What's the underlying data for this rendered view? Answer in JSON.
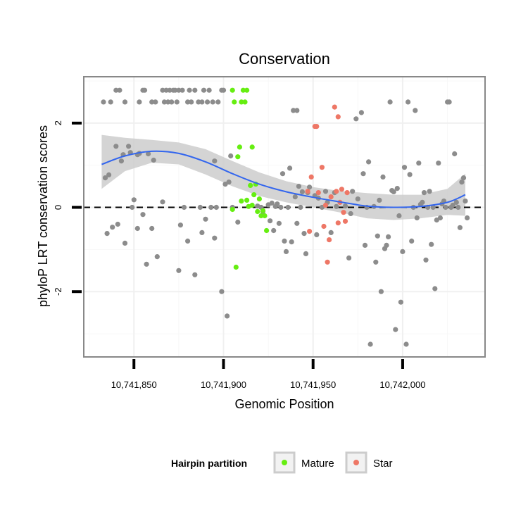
{
  "chart_data": {
    "type": "scatter",
    "title": "Conservation",
    "xlabel": "Genomic Position",
    "ylabel": "phyloP LRT conservation scores",
    "xlim": [
      10741822,
      10742046
    ],
    "ylim": [
      -3.55,
      3.1
    ],
    "x_ticks": [
      {
        "value": 10741850,
        "label": "10,741,850"
      },
      {
        "value": 10741900,
        "label": "10,741,900"
      },
      {
        "value": 10741950,
        "label": "10,741,950"
      },
      {
        "value": 10742000,
        "label": "10,742,000"
      }
    ],
    "y_ticks": [
      {
        "value": -2,
        "label": "-2"
      },
      {
        "value": 0,
        "label": "0"
      },
      {
        "value": 2,
        "label": "2"
      }
    ],
    "reference_line": {
      "y": 0,
      "style": "dashed"
    },
    "legend": {
      "title": "Hairpin partition",
      "entries": [
        {
          "label": "Mature",
          "color": "#66ee11"
        },
        {
          "label": "Star",
          "color": "#ee7766"
        }
      ]
    },
    "colors": {
      "other": "#8c8c8c",
      "mature": "#66ee11",
      "star": "#ee7766",
      "smooth": "#3366ee",
      "band": "#cccccc"
    },
    "smooth": {
      "x": [
        10741832,
        10741845,
        10741860,
        10741875,
        10741890,
        10741905,
        10741920,
        10741935,
        10741950,
        10741965,
        10741980,
        10741995,
        10742010,
        10742025,
        10742035
      ],
      "y": [
        1.02,
        1.22,
        1.33,
        1.28,
        1.08,
        0.8,
        0.55,
        0.37,
        0.24,
        0.13,
        0.03,
        0.0,
        0.02,
        0.12,
        0.3
      ]
    },
    "band": {
      "upper": [
        1.72,
        1.65,
        1.6,
        1.54,
        1.38,
        1.1,
        0.83,
        0.62,
        0.48,
        0.39,
        0.34,
        0.3,
        0.3,
        0.44,
        0.8
      ],
      "lower": [
        0.44,
        0.86,
        1.06,
        1.02,
        0.78,
        0.5,
        0.27,
        0.12,
        0.0,
        -0.12,
        -0.26,
        -0.3,
        -0.26,
        -0.18,
        -0.2
      ]
    },
    "series": [
      {
        "name": "other",
        "points": [
          [
            10741833,
            2.5
          ],
          [
            10741834,
            0.7
          ],
          [
            10741835,
            -0.62
          ],
          [
            10741836,
            0.77
          ],
          [
            10741837,
            2.5
          ],
          [
            10741838,
            -0.47
          ],
          [
            10741840,
            1.45
          ],
          [
            10741840,
            2.78
          ],
          [
            10741841,
            -0.4
          ],
          [
            10741843,
            1.1
          ],
          [
            10741842,
            2.78
          ],
          [
            10741844,
            1.25
          ],
          [
            10741845,
            2.5
          ],
          [
            10741845,
            -0.85
          ],
          [
            10741847,
            1.45
          ],
          [
            10741848,
            1.3
          ],
          [
            10741849,
            0.0
          ],
          [
            10741850,
            0.18
          ],
          [
            10741852,
            1.25
          ],
          [
            10741852,
            -0.5
          ],
          [
            10741853,
            1.28
          ],
          [
            10741853,
            2.5
          ],
          [
            10741855,
            -0.17
          ],
          [
            10741855,
            2.78
          ],
          [
            10741856,
            2.78
          ],
          [
            10741857,
            -1.35
          ],
          [
            10741858,
            1.27
          ],
          [
            10741860,
            -0.5
          ],
          [
            10741860,
            2.5
          ],
          [
            10741861,
            1.12
          ],
          [
            10741862,
            2.5
          ],
          [
            10741863,
            -1.17
          ],
          [
            10741866,
            0.13
          ],
          [
            10741866,
            2.78
          ],
          [
            10741867,
            2.5
          ],
          [
            10741868,
            2.78
          ],
          [
            10741869,
            2.5
          ],
          [
            10741870,
            2.78
          ],
          [
            10741871,
            2.5
          ],
          [
            10741872,
            2.78
          ],
          [
            10741873,
            2.78
          ],
          [
            10741874,
            2.5
          ],
          [
            10741875,
            -1.5
          ],
          [
            10741875,
            2.78
          ],
          [
            10741876,
            -0.42
          ],
          [
            10741877,
            2.78
          ],
          [
            10741878,
            0.0
          ],
          [
            10741880,
            -0.8
          ],
          [
            10741880,
            2.5
          ],
          [
            10741881,
            2.78
          ],
          [
            10741882,
            2.5
          ],
          [
            10741884,
            -1.6
          ],
          [
            10741884,
            2.78
          ],
          [
            10741886,
            2.5
          ],
          [
            10741887,
            0.0
          ],
          [
            10741888,
            -0.6
          ],
          [
            10741888,
            2.5
          ],
          [
            10741889,
            2.78
          ],
          [
            10741890,
            -0.28
          ],
          [
            10741891,
            2.5
          ],
          [
            10741892,
            2.78
          ],
          [
            10741893,
            0.0
          ],
          [
            10741894,
            2.5
          ],
          [
            10741895,
            1.1
          ],
          [
            10741895,
            -0.73
          ],
          [
            10741896,
            0.0
          ],
          [
            10741897,
            2.5
          ],
          [
            10741899,
            2.78
          ],
          [
            10741899,
            -2.0
          ],
          [
            10741900,
            2.78
          ],
          [
            10741901,
            0.55
          ],
          [
            10741902,
            -2.58
          ],
          [
            10741903,
            0.6
          ],
          [
            10741904,
            1.22
          ],
          [
            10741905,
            0.0
          ],
          [
            10741908,
            -0.35
          ],
          [
            10741919,
            0.03
          ],
          [
            10741921,
            0.0
          ],
          [
            10741922,
            -0.1
          ],
          [
            10741925,
            0.06
          ],
          [
            10741926,
            -0.32
          ],
          [
            10741927,
            0.1
          ],
          [
            10741928,
            -0.55
          ],
          [
            10741929,
            0.02
          ],
          [
            10741930,
            0.08
          ],
          [
            10741931,
            -0.38
          ],
          [
            10741932,
            0.0
          ],
          [
            10741933,
            0.8
          ],
          [
            10741934,
            -0.8
          ],
          [
            10741935,
            -1.05
          ],
          [
            10741936,
            0.0
          ],
          [
            10741937,
            0.93
          ],
          [
            10741938,
            -0.82
          ],
          [
            10741939,
            2.3
          ],
          [
            10741940,
            0.25
          ],
          [
            10741941,
            2.3
          ],
          [
            10741941,
            -0.38
          ],
          [
            10741942,
            0.5
          ],
          [
            10741943,
            0.0
          ],
          [
            10741944,
            0.37
          ],
          [
            10741945,
            -0.62
          ],
          [
            10741946,
            -1.1
          ],
          [
            10741947,
            0.35
          ],
          [
            10741948,
            0.48
          ],
          [
            10741951,
            0.28
          ],
          [
            10741952,
            -0.65
          ],
          [
            10741953,
            0.22
          ],
          [
            10741955,
            0.0
          ],
          [
            10741957,
            0.38
          ],
          [
            10741958,
            0.12
          ],
          [
            10741960,
            -0.6
          ],
          [
            10741962,
            0.35
          ],
          [
            10741963,
            0.02
          ],
          [
            10741968,
            0.03
          ],
          [
            10741970,
            -1.2
          ],
          [
            10741971,
            -0.15
          ],
          [
            10741972,
            0.38
          ],
          [
            10741974,
            2.1
          ],
          [
            10741975,
            0.2
          ],
          [
            10741977,
            2.25
          ],
          [
            10741978,
            0.8
          ],
          [
            10741979,
            -0.9
          ],
          [
            10741980,
            0.0
          ],
          [
            10741981,
            1.08
          ],
          [
            10741982,
            -3.25
          ],
          [
            10741984,
            0.02
          ],
          [
            10741985,
            -1.3
          ],
          [
            10741986,
            -0.68
          ],
          [
            10741987,
            0.17
          ],
          [
            10741988,
            -2.0
          ],
          [
            10741989,
            0.72
          ],
          [
            10741990,
            -0.98
          ],
          [
            10741991,
            -0.9
          ],
          [
            10741992,
            -0.7
          ],
          [
            10741993,
            2.5
          ],
          [
            10741994,
            0.4
          ],
          [
            10741995,
            0.37
          ],
          [
            10741996,
            -2.9
          ],
          [
            10741997,
            0.45
          ],
          [
            10741998,
            -0.2
          ],
          [
            10741999,
            -2.25
          ],
          [
            10742000,
            -1.05
          ],
          [
            10742001,
            0.95
          ],
          [
            10742002,
            -3.25
          ],
          [
            10742003,
            2.5
          ],
          [
            10742004,
            0.78
          ],
          [
            10742005,
            -0.8
          ],
          [
            10742006,
            0.0
          ],
          [
            10742007,
            2.3
          ],
          [
            10742008,
            -0.25
          ],
          [
            10742009,
            1.05
          ],
          [
            10742010,
            0.07
          ],
          [
            10742011,
            0.12
          ],
          [
            10742012,
            0.35
          ],
          [
            10742013,
            -1.25
          ],
          [
            10742014,
            0.0
          ],
          [
            10742015,
            0.38
          ],
          [
            10742016,
            -0.88
          ],
          [
            10742017,
            0.0
          ],
          [
            10742018,
            -1.93
          ],
          [
            10742019,
            -0.3
          ],
          [
            10742020,
            1.05
          ],
          [
            10742021,
            -0.25
          ],
          [
            10742022,
            0.08
          ],
          [
            10742023,
            0.15
          ],
          [
            10742024,
            0.0
          ],
          [
            10742025,
            2.5
          ],
          [
            10742026,
            2.5
          ],
          [
            10742027,
            0.0
          ],
          [
            10742028,
            0.05
          ],
          [
            10742029,
            1.27
          ],
          [
            10742030,
            0.12
          ],
          [
            10742031,
            0.0
          ],
          [
            10742032,
            -0.48
          ],
          [
            10742033,
            0.6
          ],
          [
            10742034,
            0.7
          ],
          [
            10742035,
            0.15
          ],
          [
            10742036,
            -0.25
          ]
        ]
      },
      {
        "name": "Mature",
        "points": [
          [
            10741905,
            2.78
          ],
          [
            10741905,
            -0.05
          ],
          [
            10741906,
            2.5
          ],
          [
            10741907,
            -1.42
          ],
          [
            10741908,
            1.2
          ],
          [
            10741909,
            1.43
          ],
          [
            10741910,
            0.15
          ],
          [
            10741910,
            2.5
          ],
          [
            10741911,
            2.78
          ],
          [
            10741912,
            2.5
          ],
          [
            10741913,
            2.78
          ],
          [
            10741913,
            0.17
          ],
          [
            10741914,
            0.02
          ],
          [
            10741915,
            0.52
          ],
          [
            10741916,
            1.43
          ],
          [
            10741916,
            0.05
          ],
          [
            10741917,
            0.3
          ],
          [
            10741918,
            0.55
          ],
          [
            10741919,
            -0.1
          ],
          [
            10741920,
            0.2
          ],
          [
            10741921,
            -0.2
          ],
          [
            10741922,
            -0.08
          ],
          [
            10741923,
            -0.2
          ],
          [
            10741924,
            -0.55
          ]
        ]
      },
      {
        "name": "Star",
        "points": [
          [
            10741947,
            0.38
          ],
          [
            10741948,
            -0.57
          ],
          [
            10741949,
            0.72
          ],
          [
            10741951,
            1.92
          ],
          [
            10741952,
            1.92
          ],
          [
            10741953,
            0.35
          ],
          [
            10741955,
            0.95
          ],
          [
            10741956,
            -0.45
          ],
          [
            10741957,
            0.05
          ],
          [
            10741958,
            -1.3
          ],
          [
            10741959,
            -0.77
          ],
          [
            10741960,
            0.25
          ],
          [
            10741962,
            2.38
          ],
          [
            10741963,
            0.38
          ],
          [
            10741964,
            2.15
          ],
          [
            10741964,
            -0.37
          ],
          [
            10741965,
            0.12
          ],
          [
            10741966,
            0.43
          ],
          [
            10741967,
            -0.12
          ],
          [
            10741968,
            -0.33
          ],
          [
            10741969,
            0.35
          ]
        ]
      }
    ]
  }
}
